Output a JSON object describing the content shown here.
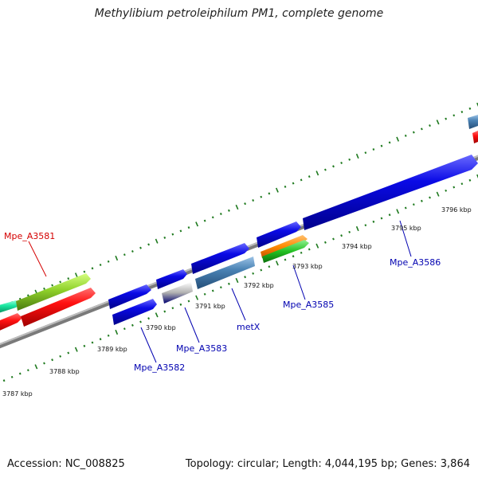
{
  "title": "Methylibium petroleiphilum PM1, complete genome",
  "footer": {
    "accession": "Accession: NC_008825",
    "topology": "Topology: circular; Length: 4,044,195 bp; Genes: 3,864"
  },
  "colors": {
    "backbone": "#8c8c8c",
    "ticks": "#1f7a1f",
    "blue_gene": "#0a0ae6",
    "steel_gene": "#4a82b4",
    "red_gene": "#ff1010",
    "lime_gene": "#8fd12a",
    "cyan_gene": "#19e6a0",
    "orange_gene": "#ff8a00",
    "green_gene": "#22c022",
    "label_red": "#d40000",
    "label_blue": "#0000b0"
  },
  "kbp_labels": [
    {
      "text": "3787 kbp",
      "kbp": 3787
    },
    {
      "text": "3788 kbp",
      "kbp": 3788
    },
    {
      "text": "3789 kbp",
      "kbp": 3789
    },
    {
      "text": "3790 kbp",
      "kbp": 3790
    },
    {
      "text": "3791 kbp",
      "kbp": 3791
    },
    {
      "text": "3792 kbp",
      "kbp": 3792
    },
    {
      "text": "3793 kbp",
      "kbp": 3793
    },
    {
      "text": "3794 kbp",
      "kbp": 3794
    },
    {
      "text": "3795 kbp",
      "kbp": 3795
    },
    {
      "text": "3796 kbp",
      "kbp": 3796
    }
  ],
  "genes": [
    {
      "id": "cyan-forward",
      "lane": 1,
      "start_kbp": 3786.6,
      "end_kbp": 3787.3,
      "color": "cyan_gene",
      "arrow": true
    },
    {
      "id": "lime-forward",
      "lane": 2,
      "start_kbp": 3787.3,
      "end_kbp": 3788.7,
      "color": "lime_gene",
      "arrow": true
    },
    {
      "id": "red-forward-a",
      "lane": 1,
      "start_kbp": 3786.6,
      "end_kbp": 3787.1,
      "color": "red_gene",
      "arrow": true,
      "inner": true
    },
    {
      "id": "red-forward-b",
      "lane": 1,
      "start_kbp": 3787.3,
      "end_kbp": 3788.7,
      "color": "red_gene",
      "arrow": true,
      "inner": true
    },
    {
      "id": "blue-a3582a",
      "lane": 1,
      "start_kbp": 3789.3,
      "end_kbp": 3789.9,
      "color": "blue_gene",
      "arrow": true
    },
    {
      "id": "blue-a3582b",
      "lane": 1,
      "start_kbp": 3789.3,
      "end_kbp": 3789.9,
      "color": "blue_gene",
      "arrow": true,
      "inner": true
    },
    {
      "id": "blue-a3583",
      "lane": 1,
      "start_kbp": 3790.1,
      "end_kbp": 3790.5,
      "color": "blue_gene",
      "arrow": true
    },
    {
      "id": "grey-a3583",
      "lane": 1,
      "start_kbp": 3790.1,
      "end_kbp": 3790.5,
      "color": "steel_gene",
      "arrow": false,
      "inner": true
    },
    {
      "id": "blue-metx",
      "lane": 1,
      "start_kbp": 3790.6,
      "end_kbp": 3791.4,
      "color": "blue_gene",
      "arrow": true
    },
    {
      "id": "steel-metx",
      "lane": 1,
      "start_kbp": 3790.6,
      "end_kbp": 3791.5,
      "color": "steel_gene",
      "arrow": false,
      "inner": true
    },
    {
      "id": "blue-a3585",
      "lane": 1,
      "start_kbp": 3791.6,
      "end_kbp": 3792.2,
      "color": "blue_gene",
      "arrow": true
    },
    {
      "id": "orange-a3585",
      "lane": 1,
      "start_kbp": 3791.7,
      "end_kbp": 3792.3,
      "color": "orange_gene",
      "arrow": true,
      "inner": true
    },
    {
      "id": "blue-a3586",
      "lane": 1,
      "start_kbp": 3792.3,
      "end_kbp": 3795.9,
      "color": "blue_gene",
      "arrow": true
    }
  ],
  "gene_labels": [
    {
      "text": "Mpe_A3581",
      "color": "label_red"
    },
    {
      "text": "Mpe_A3582",
      "color": "label_blue"
    },
    {
      "text": "Mpe_A3583",
      "color": "label_blue"
    },
    {
      "text": "metX",
      "color": "label_blue"
    },
    {
      "text": "Mpe_A3585",
      "color": "label_blue"
    },
    {
      "text": "Mpe_A3586",
      "color": "label_blue"
    }
  ]
}
